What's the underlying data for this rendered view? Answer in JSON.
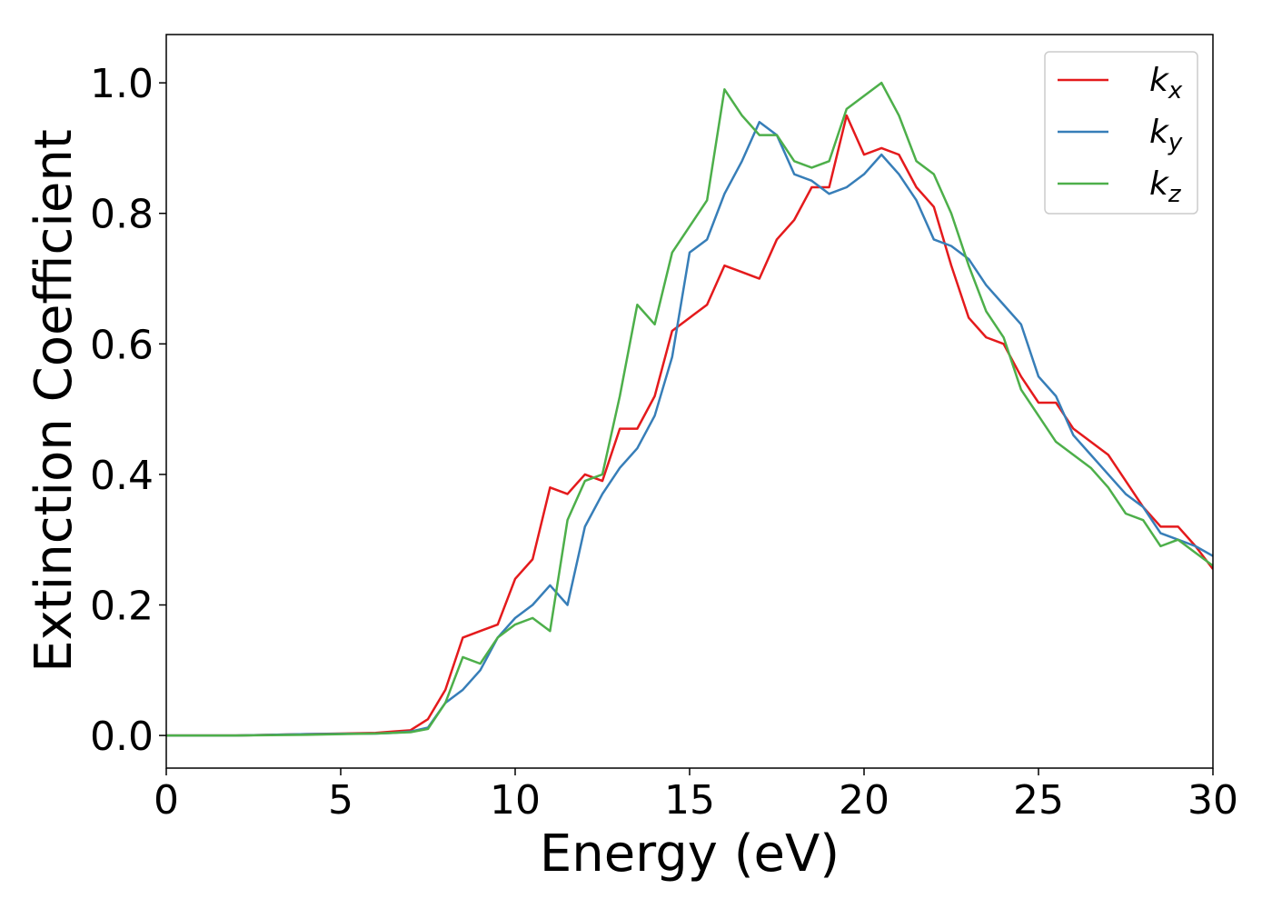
{
  "chart_data": {
    "type": "line",
    "xlabel": "Energy (eV)",
    "ylabel": "Extinction Coefficient",
    "x": [
      0,
      2,
      4,
      6,
      6.5,
      7,
      7.5,
      8,
      8.5,
      9,
      9.5,
      10,
      10.5,
      11,
      11.5,
      12,
      12.5,
      13,
      13.5,
      14,
      14.5,
      15,
      15.5,
      16,
      16.5,
      17,
      17.5,
      18,
      18.5,
      19,
      19.5,
      20,
      20.5,
      21,
      21.5,
      22,
      22.5,
      23,
      23.5,
      24,
      24.5,
      25,
      25.5,
      26,
      26.5,
      27,
      27.5,
      28,
      28.5,
      29,
      29.5,
      30
    ],
    "series": [
      {
        "name": "kx",
        "color": "#e41a1c",
        "values": [
          0,
          0,
          0.002,
          0.004,
          0.006,
          0.008,
          0.025,
          0.07,
          0.15,
          0.16,
          0.17,
          0.24,
          0.27,
          0.38,
          0.37,
          0.4,
          0.39,
          0.47,
          0.47,
          0.52,
          0.62,
          0.64,
          0.66,
          0.72,
          0.71,
          0.7,
          0.76,
          0.79,
          0.84,
          0.84,
          0.95,
          0.89,
          0.9,
          0.89,
          0.84,
          0.81,
          0.72,
          0.64,
          0.61,
          0.6,
          0.55,
          0.51,
          0.51,
          0.47,
          0.45,
          0.43,
          0.39,
          0.35,
          0.32,
          0.32,
          0.29,
          0.255
        ]
      },
      {
        "name": "ky",
        "color": "#377eb8",
        "values": [
          0,
          0,
          0.002,
          0.003,
          0.004,
          0.006,
          0.012,
          0.05,
          0.07,
          0.1,
          0.15,
          0.18,
          0.2,
          0.23,
          0.2,
          0.32,
          0.37,
          0.41,
          0.44,
          0.49,
          0.58,
          0.74,
          0.76,
          0.83,
          0.88,
          0.94,
          0.92,
          0.86,
          0.85,
          0.83,
          0.84,
          0.86,
          0.89,
          0.86,
          0.82,
          0.76,
          0.75,
          0.73,
          0.69,
          0.66,
          0.63,
          0.55,
          0.52,
          0.46,
          0.43,
          0.4,
          0.37,
          0.35,
          0.31,
          0.3,
          0.29,
          0.275
        ]
      },
      {
        "name": "kz",
        "color": "#4daf4a",
        "values": [
          0,
          0,
          0.001,
          0.003,
          0.004,
          0.005,
          0.01,
          0.05,
          0.12,
          0.11,
          0.15,
          0.17,
          0.18,
          0.16,
          0.33,
          0.39,
          0.4,
          0.52,
          0.66,
          0.63,
          0.74,
          0.78,
          0.82,
          0.99,
          0.95,
          0.92,
          0.92,
          0.88,
          0.87,
          0.88,
          0.96,
          0.98,
          1.0,
          0.95,
          0.88,
          0.86,
          0.8,
          0.72,
          0.65,
          0.61,
          0.53,
          0.49,
          0.45,
          0.43,
          0.41,
          0.38,
          0.34,
          0.33,
          0.29,
          0.3,
          0.28,
          0.26
        ]
      }
    ],
    "xlim": [
      0,
      30
    ],
    "xticks": [
      0,
      5,
      10,
      15,
      20,
      25,
      30
    ],
    "ylim": [
      -0.05,
      1.074
    ],
    "yticks": [
      {
        "value": 0,
        "label": "0.0"
      },
      {
        "value": 0.2,
        "label": "0.2"
      },
      {
        "value": 0.4,
        "label": "0.4"
      },
      {
        "value": 0.6,
        "label": "0.6"
      },
      {
        "value": 0.8,
        "label": "0.8"
      },
      {
        "value": 1,
        "label": "1.0"
      }
    ],
    "legend": "upper right",
    "grid": false
  }
}
